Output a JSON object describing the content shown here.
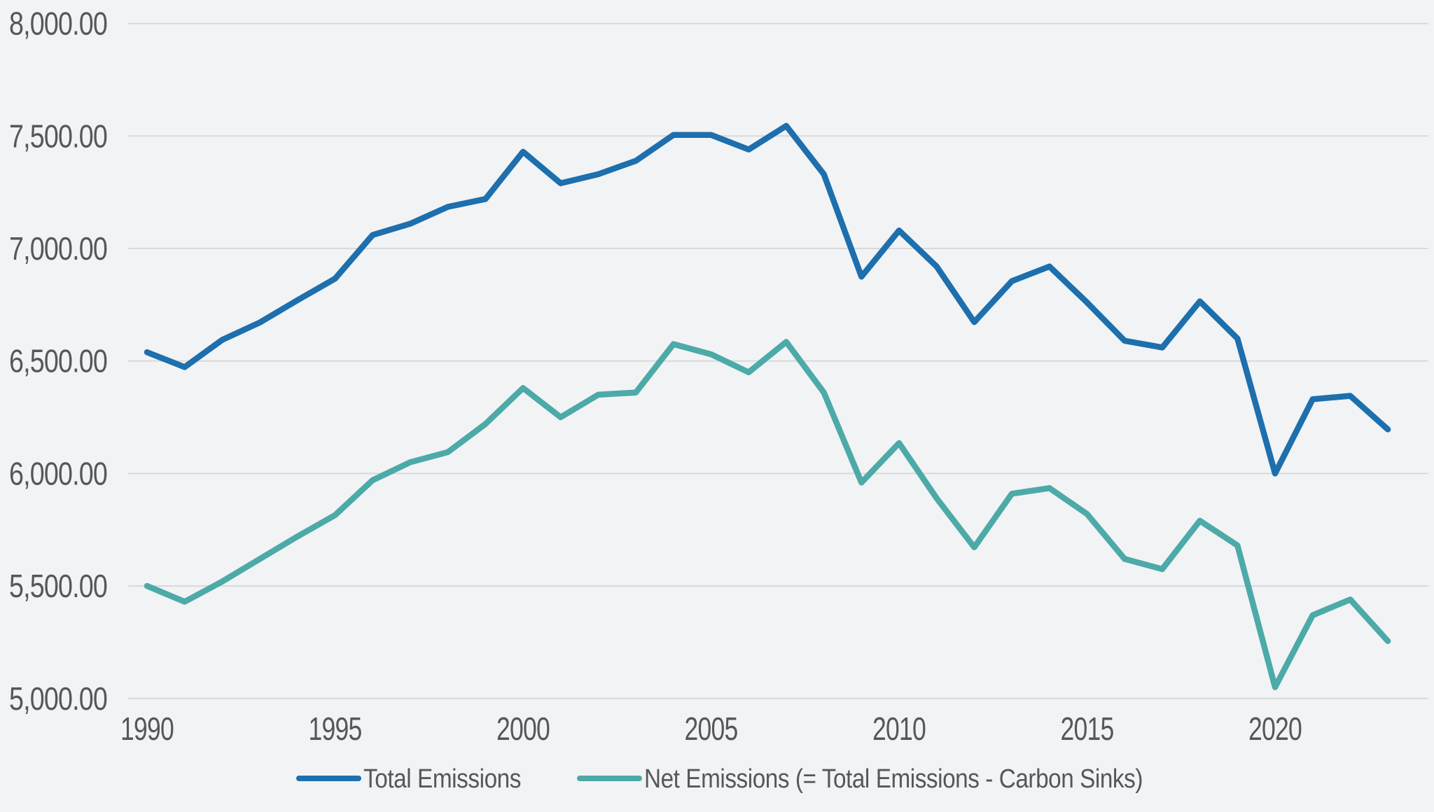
{
  "chart_data": {
    "type": "line",
    "title": "",
    "x_years": [
      1990,
      1991,
      1992,
      1993,
      1994,
      1995,
      1996,
      1997,
      1998,
      1999,
      2000,
      2001,
      2002,
      2003,
      2004,
      2005,
      2006,
      2007,
      2008,
      2009,
      2010,
      2011,
      2012,
      2013,
      2014,
      2015,
      2016,
      2017,
      2018,
      2019,
      2020,
      2021,
      2022,
      2023
    ],
    "series": [
      {
        "name": "Total Emissions",
        "color": "#1d6fad",
        "values": [
          6539,
          6473,
          6594,
          6671,
          6770,
          6866,
          7060,
          7110,
          7185,
          7220,
          7430,
          7290,
          7330,
          7390,
          7505,
          7505,
          7440,
          7545,
          7330,
          6875,
          7080,
          6920,
          6673,
          6855,
          6920,
          6760,
          6590,
          6560,
          6765,
          6600,
          6000,
          6330,
          6345,
          6196
        ]
      },
      {
        "name": "Net Emissions (= Total Emissions - Carbon Sinks)",
        "color": "#4caaa8",
        "values": [
          5500,
          5430,
          5520,
          5620,
          5720,
          5815,
          5970,
          6050,
          6095,
          6220,
          6380,
          6250,
          6350,
          6360,
          6575,
          6530,
          6450,
          6585,
          6360,
          5960,
          6135,
          5890,
          5672,
          5910,
          5935,
          5820,
          5620,
          5575,
          5790,
          5680,
          5050,
          5370,
          5440,
          5255
        ]
      }
    ],
    "y_axis": {
      "min": 5000,
      "max": 8000,
      "tick_step": 500,
      "tick_labels": [
        "8,000.00",
        "7,500.00",
        "7,000.00",
        "6,500.00",
        "6,000.00",
        "5,500.00",
        "5,000.00"
      ]
    },
    "x_axis": {
      "tick_years": [
        1990,
        1995,
        2000,
        2005,
        2010,
        2015,
        2020
      ],
      "tick_labels": [
        "1990",
        "1995",
        "2000",
        "2005",
        "2010",
        "2015",
        "2020"
      ]
    },
    "grid": "horizontal",
    "legend_position": "bottom-center",
    "ylim": [
      5000,
      8000
    ]
  },
  "colors": {
    "background": "#f2f3f5",
    "gridline": "#d7d9dc",
    "tick_text": "#55575a",
    "legend_text": "#55575a",
    "total_line": "#1d6fad",
    "net_line": "#4caaa8"
  }
}
